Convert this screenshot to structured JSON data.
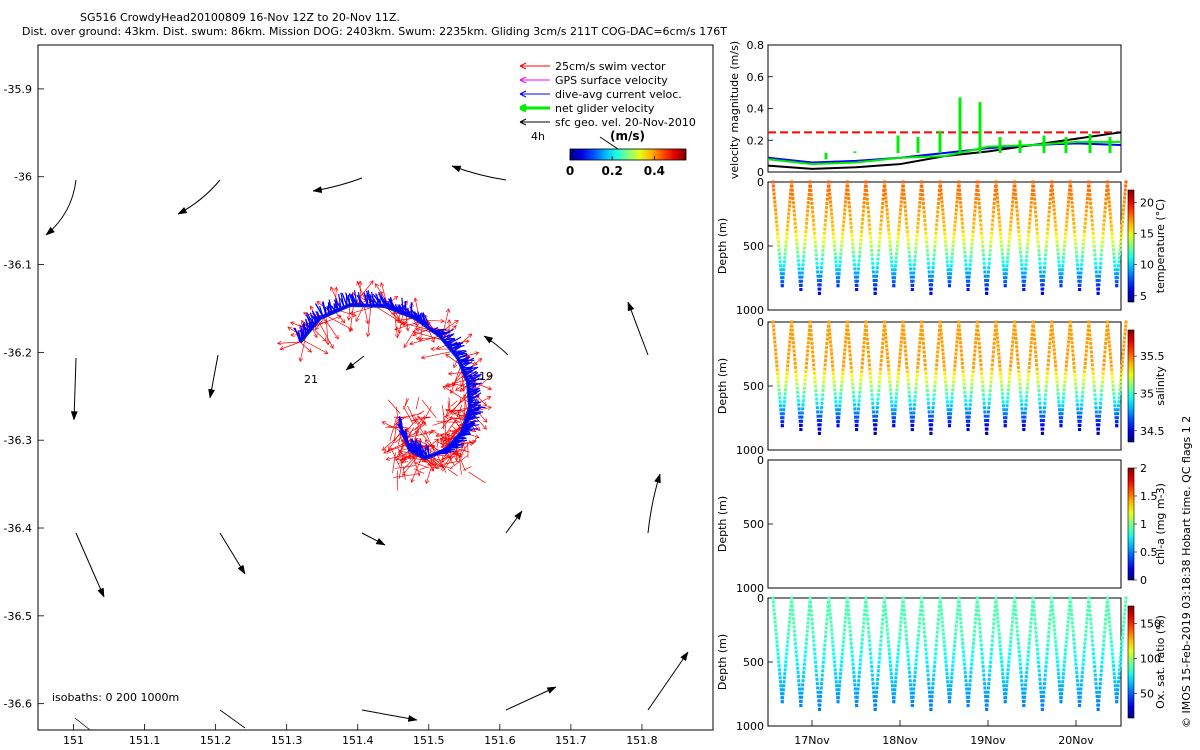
{
  "header": {
    "title_line1": "SG516 CrowdyHead20100809 16-Nov 12Z to 20-Nov 11Z.",
    "title_line2": "Dist. over ground: 43km. Dist. swum: 86km. Mission DOG: 2403km. Swum: 2235km. Gliding 3cm/s 211T COG-DAC=6cm/s 176T"
  },
  "legend": {
    "items": [
      {
        "label": "25cm/s swim vector",
        "color": "#ff0000"
      },
      {
        "label": "GPS surface velocity",
        "color": "#ff00ff"
      },
      {
        "label": "dive-avg current veloc.",
        "color": "#0000ff"
      },
      {
        "label": "net glider velocity",
        "color": "#00ee00"
      },
      {
        "label": "sfc geo. vel. 20-Nov-2010",
        "color": "#000000"
      }
    ],
    "four_h": "4h"
  },
  "colorbar_speed": {
    "title": "(m/s)",
    "ticks": [
      "0",
      "0.2",
      "0.4"
    ],
    "min": 0,
    "max": 0.55
  },
  "map": {
    "xticks": [
      "151",
      "151.1",
      "151.2",
      "151.3",
      "151.4",
      "151.5",
      "151.6",
      "151.7",
      "151.8"
    ],
    "yticks": [
      "-35.9",
      "-36",
      "-36.1",
      "-36.2",
      "-36.3",
      "-36.4",
      "-36.5",
      "-36.6"
    ],
    "isobaths_label": "isobaths: 0   200   1000m",
    "label_start": "21",
    "label_end": "19"
  },
  "footer": {
    "credit": "© IMOS 15-Feb-2019 03:18:38 Hobart time. QC flags 1  2"
  },
  "colors": {
    "red": "#ff0000",
    "blue": "#0000ff",
    "green": "#00ee00"
  },
  "chart_data": [
    {
      "type": "line",
      "panel": "velocity",
      "ylabel": "velocity magnitude (m/s)",
      "ylim": [
        0,
        0.8
      ],
      "yticks": [
        "0",
        "0.2",
        "0.4",
        "0.6",
        "0.8"
      ],
      "x": [
        "16-Nov 12Z",
        "17-Nov",
        "17-Nov 12Z",
        "18-Nov",
        "18-Nov 12Z",
        "19-Nov",
        "19-Nov 12Z",
        "20-Nov",
        "20-Nov 11Z"
      ],
      "series": [
        {
          "color": "#ff0000",
          "style": "dashed",
          "values": [
            0.25,
            0.25,
            0.25,
            0.25,
            0.25,
            0.25,
            0.25,
            0.25,
            0.25
          ]
        },
        {
          "color": "#000000",
          "values": [
            0.04,
            0.02,
            0.03,
            0.05,
            0.1,
            0.13,
            0.17,
            0.21,
            0.25
          ]
        },
        {
          "color": "#0000ff",
          "values": [
            0.09,
            0.06,
            0.07,
            0.09,
            0.12,
            0.15,
            0.17,
            0.18,
            0.17
          ]
        },
        {
          "color": "#00ee00",
          "values": [
            0.08,
            0.05,
            0.06,
            0.09,
            0.1,
            0.16,
            0.17,
            0.19,
            0.19
          ]
        }
      ]
    },
    {
      "type": "scatter",
      "panel": "temperature",
      "ylabel": "Depth (m)",
      "yticks": [
        "0",
        "500",
        "1000"
      ],
      "colorbar_label": "temperature (°C)",
      "colorbar_ticks": [
        "5",
        "10",
        "15",
        "20"
      ],
      "clim": [
        4,
        22
      ],
      "dives": 19,
      "max_depth": 850
    },
    {
      "type": "scatter",
      "panel": "salinity",
      "ylabel": "Depth (m)",
      "yticks": [
        "0",
        "500",
        "1000"
      ],
      "colorbar_label": "salinity",
      "colorbar_ticks": [
        "34.5",
        "35",
        "35.5"
      ],
      "clim": [
        34.35,
        35.85
      ],
      "dives": 19,
      "max_depth": 850
    },
    {
      "type": "scatter",
      "panel": "chla",
      "ylabel": "Depth (m)",
      "yticks": [
        "0",
        "500",
        "1000"
      ],
      "colorbar_label": "chl-a (mg m-3)",
      "colorbar_ticks": [
        "0",
        "0.5",
        "1",
        "1.5",
        "2"
      ],
      "clim": [
        0,
        2
      ],
      "dives": 0
    },
    {
      "type": "scatter",
      "panel": "oxygen",
      "ylabel": "Depth (m)",
      "yticks": [
        "0",
        "500",
        "1000"
      ],
      "colorbar_label": "Ox. sat. ratio (%)",
      "colorbar_ticks": [
        "50",
        "100",
        "150"
      ],
      "clim": [
        15,
        175
      ],
      "dives": 19,
      "max_depth": 850
    },
    {
      "type": "scatter",
      "panel": "map",
      "xlim": [
        150.95,
        151.9
      ],
      "ylim": [
        -36.63,
        -35.85
      ]
    }
  ],
  "time_axis": {
    "ticks": [
      "17Nov",
      "18Nov",
      "19Nov",
      "20Nov"
    ]
  }
}
